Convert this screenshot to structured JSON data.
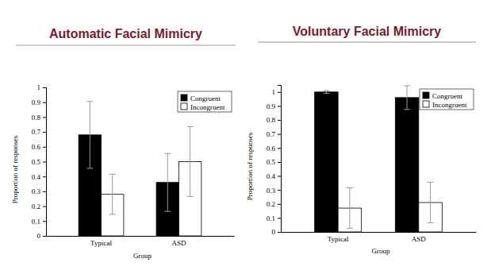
{
  "chart_data": [
    {
      "type": "bar",
      "title": "Automatic Facial Mimicry",
      "x_label": "Group",
      "y_label": "Proportion of responses",
      "categories": [
        "Typical",
        "ASD"
      ],
      "series": [
        {
          "name": "Congruent",
          "color": "#000000",
          "values": [
            0.68,
            0.36
          ],
          "errors": [
            0.225,
            0.195
          ]
        },
        {
          "name": "Incongruent",
          "color": "#ffffff",
          "values": [
            0.28,
            0.5
          ],
          "errors": [
            0.135,
            0.235
          ]
        }
      ],
      "ylim": [
        0,
        1
      ],
      "yticks": [
        0,
        0.1,
        0.2,
        0.3,
        0.4,
        0.5,
        0.6,
        0.7,
        0.8,
        0.9,
        1
      ],
      "legend": "upper right"
    },
    {
      "type": "bar",
      "title": "Voluntary Facial Mimicry",
      "x_label": "Group",
      "y_label": "Proportion of responses",
      "categories": [
        "Typical",
        "ASD"
      ],
      "series": [
        {
          "name": "Congruent",
          "color": "#000000",
          "values": [
            1.0,
            0.96
          ],
          "errors": [
            0.01,
            0.085
          ]
        },
        {
          "name": "Incongruent",
          "color": "#ffffff",
          "values": [
            0.17,
            0.21
          ],
          "errors": [
            0.145,
            0.145
          ]
        }
      ],
      "ylim": [
        0,
        1.05
      ],
      "yticks": [
        0,
        0.1,
        0.2,
        0.3,
        0.4,
        0.5,
        0.6,
        0.7,
        0.8,
        0.9,
        1
      ],
      "legend": "upper right"
    }
  ]
}
